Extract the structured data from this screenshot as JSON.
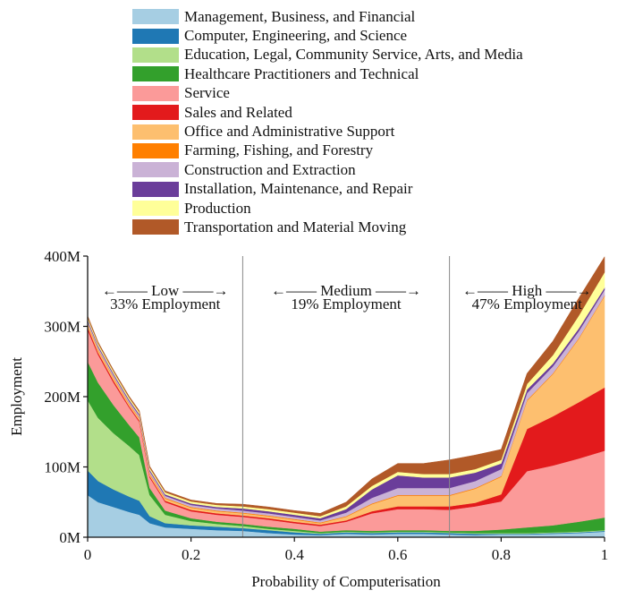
{
  "chart_data": {
    "type": "area",
    "title": "",
    "xlabel": "Probability of Computerisation",
    "ylabel": "Employment",
    "xlim": [
      0,
      1
    ],
    "ylim": [
      0,
      400
    ],
    "x_ticks": [
      0,
      0.2,
      0.4,
      0.6,
      0.8,
      1
    ],
    "x_tick_labels": [
      "0",
      "0.2",
      "0.4",
      "0.6",
      "0.8",
      "1"
    ],
    "y_ticks": [
      0,
      100,
      200,
      300,
      400
    ],
    "y_tick_labels": [
      "0M",
      "100M",
      "200M",
      "300M",
      "400M"
    ],
    "thresholds": [
      0.3,
      0.7
    ],
    "regions": [
      {
        "name": "Low",
        "arrow_label": "←—— Low ——→",
        "share": "33% Employment",
        "x_center": 0.15
      },
      {
        "name": "Medium",
        "arrow_label": "←—— Medium ——→",
        "share": "19% Employment",
        "x_center": 0.5
      },
      {
        "name": "High",
        "arrow_label": "←—— High ——→",
        "share": "47% Employment",
        "x_center": 0.85
      }
    ],
    "x": [
      0,
      0.02,
      0.05,
      0.08,
      0.1,
      0.12,
      0.15,
      0.2,
      0.25,
      0.3,
      0.35,
      0.4,
      0.45,
      0.5,
      0.55,
      0.6,
      0.65,
      0.7,
      0.75,
      0.8,
      0.85,
      0.9,
      0.95,
      1
    ],
    "series": [
      {
        "name": "Management, Business, and Financial",
        "color": "#a6cee3",
        "values": [
          60,
          50,
          43,
          36,
          32,
          20,
          14,
          12,
          10,
          9,
          6,
          4,
          3,
          5,
          4,
          5,
          5,
          4,
          3,
          4,
          4,
          5,
          6,
          8
        ]
      },
      {
        "name": "Computer, Engineering, and Science",
        "color": "#1f78b4",
        "values": [
          35,
          30,
          25,
          22,
          20,
          10,
          6,
          5,
          5,
          4,
          4,
          3,
          2,
          2,
          2,
          2,
          2,
          2,
          2,
          1,
          1,
          1,
          1,
          1
        ]
      },
      {
        "name": "Education, Legal, Community Service, Arts, and Media",
        "color": "#b2df8a",
        "values": [
          100,
          90,
          80,
          72,
          65,
          30,
          12,
          6,
          4,
          3,
          2,
          2,
          1,
          1,
          1,
          1,
          1,
          1,
          1,
          1,
          1,
          1,
          1,
          1
        ]
      },
      {
        "name": "Healthcare Practitioners and Technical",
        "color": "#33a02c",
        "values": [
          55,
          50,
          40,
          30,
          25,
          10,
          6,
          4,
          3,
          3,
          3,
          3,
          2,
          2,
          2,
          2,
          2,
          2,
          3,
          5,
          8,
          10,
          14,
          18
        ]
      },
      {
        "name": "Service",
        "color": "#fb9a99",
        "values": [
          45,
          40,
          32,
          25,
          22,
          15,
          12,
          10,
          10,
          10,
          10,
          8,
          8,
          12,
          25,
          30,
          30,
          30,
          35,
          40,
          80,
          85,
          90,
          95
        ]
      },
      {
        "name": "Sales and Related",
        "color": "#e31a1c",
        "values": [
          4,
          3,
          3,
          2,
          2,
          2,
          2,
          2,
          2,
          2,
          2,
          2,
          2,
          2,
          3,
          4,
          4,
          5,
          5,
          10,
          60,
          70,
          80,
          90
        ]
      },
      {
        "name": "Office and Administrative Support",
        "color": "#fdbf6f",
        "values": [
          5,
          4,
          4,
          3,
          3,
          3,
          3,
          3,
          3,
          3,
          3,
          3,
          2,
          5,
          10,
          15,
          15,
          15,
          20,
          25,
          40,
          60,
          90,
          130
        ]
      },
      {
        "name": "Farming, Fishing, and Forestry",
        "color": "#ff7f00",
        "values": [
          1,
          1,
          1,
          1,
          1,
          1,
          1,
          1,
          1,
          1,
          1,
          1,
          1,
          1,
          1,
          1,
          1,
          1,
          1,
          1,
          1,
          1,
          1,
          1
        ]
      },
      {
        "name": "Construction and Extraction",
        "color": "#cab2d6",
        "values": [
          3,
          3,
          3,
          3,
          3,
          3,
          3,
          3,
          3,
          3,
          3,
          3,
          3,
          5,
          8,
          10,
          10,
          10,
          10,
          10,
          10,
          10,
          10,
          8
        ]
      },
      {
        "name": "Installation, Maintenance, and Repair",
        "color": "#6a3d9a",
        "values": [
          2,
          2,
          2,
          2,
          2,
          2,
          2,
          2,
          2,
          3,
          3,
          3,
          3,
          5,
          12,
          18,
          15,
          15,
          12,
          8,
          5,
          4,
          4,
          3
        ]
      },
      {
        "name": "Production",
        "color": "#ffff99",
        "values": [
          3,
          3,
          3,
          3,
          3,
          3,
          3,
          3,
          3,
          3,
          3,
          3,
          3,
          4,
          5,
          5,
          5,
          5,
          5,
          5,
          8,
          12,
          18,
          22
        ]
      },
      {
        "name": "Transportation and Material Moving",
        "color": "#b15928",
        "values": [
          2,
          2,
          2,
          2,
          2,
          2,
          2,
          2,
          2,
          3,
          3,
          3,
          4,
          6,
          10,
          12,
          15,
          20,
          20,
          15,
          15,
          20,
          25,
          22
        ]
      }
    ]
  }
}
